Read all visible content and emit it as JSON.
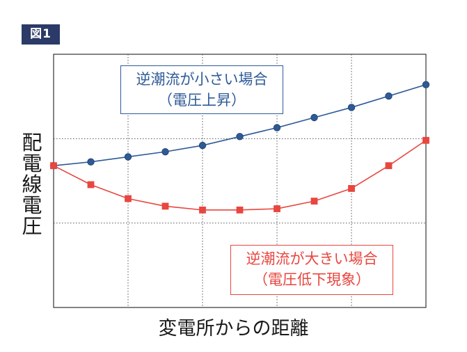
{
  "figure_label": "図1",
  "chart_data": {
    "type": "line",
    "title": "",
    "xlabel": "変電所からの距離",
    "ylabel": "配電線電圧",
    "x": [
      0,
      1,
      2,
      3,
      4,
      5,
      6,
      7,
      8,
      9,
      10
    ],
    "xlim": [
      0,
      10
    ],
    "ylim": [
      0,
      100
    ],
    "grid": true,
    "series": [
      {
        "name": "逆潮流が小さい場合",
        "marker": "circle",
        "color": "#2e5a96",
        "values": [
          56,
          57.5,
          59.5,
          61.5,
          64,
          67.5,
          71,
          75,
          79,
          83.5,
          88
        ]
      },
      {
        "name": "逆潮流が大きい場合",
        "marker": "square",
        "color": "#e8463f",
        "values": [
          56,
          48.5,
          43,
          40,
          38.5,
          38.5,
          39,
          42,
          47,
          56,
          66
        ]
      }
    ],
    "annotations": [
      {
        "line1": "逆潮流が小さい場合",
        "line2": "（電圧上昇）",
        "color": "#2e5a96"
      },
      {
        "line1": "逆潮流が大きい場合",
        "line2": "（電圧低下現象）",
        "color": "#e8463f"
      }
    ]
  }
}
